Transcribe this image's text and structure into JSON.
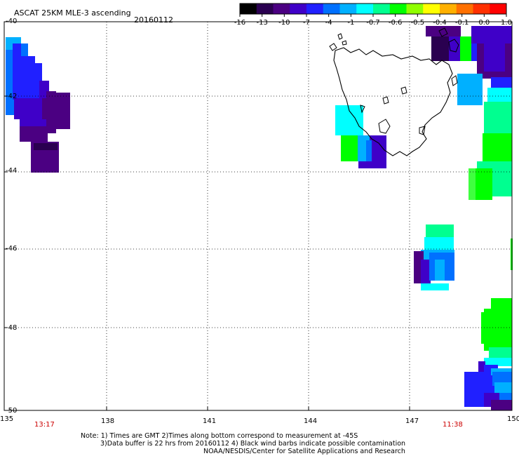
{
  "header": {
    "title": "ASCAT 25KM MLE-3 ascending",
    "date": "20160112"
  },
  "colorbar": {
    "labels": [
      "-16",
      "-13",
      "-10",
      "-7",
      "-4",
      "-1",
      "-0.7",
      "-0.6",
      "-0.5",
      "-0.4",
      "-0.1",
      "0.0",
      "1.0"
    ],
    "colors": [
      "#000000",
      "#2a0050",
      "#4b0082",
      "#3f00c8",
      "#2020ff",
      "#0070ff",
      "#00b0ff",
      "#00ffff",
      "#00ff90",
      "#00ff00",
      "#90ff00",
      "#ffff00",
      "#ffb000",
      "#ff7000",
      "#ff3000",
      "#ff0000"
    ]
  },
  "axes": {
    "lat_labels": [
      "-40",
      "-42",
      "-44",
      "-46",
      "-48",
      "-50"
    ],
    "lon_labels": [
      "135",
      "138",
      "141",
      "144",
      "147",
      "150"
    ],
    "lat_range": [
      -50,
      -40
    ],
    "lon_range": [
      135,
      150
    ]
  },
  "pass_times": [
    "13:17",
    "11:38"
  ],
  "notes": [
    "Note: 1) Times are GMT 2)Times along bottom correspond to measurement at -45S",
    "3)Data buffer is 22 hrs from 20160112 4) Black wind barbs indicate possible contamination",
    "NOAA/NESDIS/Center for Satellite Applications and Research"
  ]
}
